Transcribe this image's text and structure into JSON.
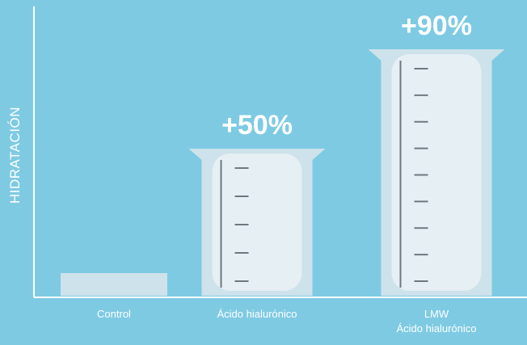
{
  "chart_data": {
    "type": "bar",
    "ylabel": "HIDRATACIÓN",
    "categories": [
      "Control",
      "Ácido hialurónico",
      "LMW Ácido hialurónico"
    ],
    "category_label_lines": [
      [
        "Control"
      ],
      [
        "Ácido hialurónico"
      ],
      [
        "LMW",
        "Ácido hialurónico"
      ]
    ],
    "values": [
      0,
      50,
      90
    ],
    "value_labels": [
      "",
      "+50%",
      "+90%"
    ],
    "grid": false,
    "colors": {
      "background": "#7ecae3",
      "axis": "#ffffff",
      "beaker_outer": "#cde2ea",
      "beaker_inner": "#e6eff4",
      "scale": "#6c7a80",
      "text": "#ffffff"
    }
  }
}
